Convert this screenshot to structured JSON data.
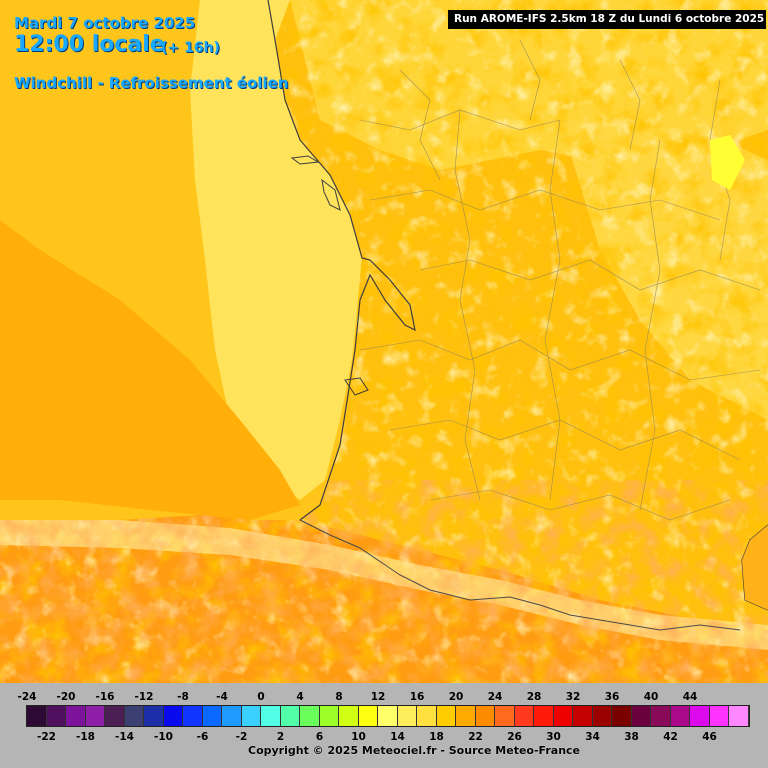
{
  "header": {
    "date": "Mardi 7 octobre 2025",
    "time": "12:00 locale",
    "lead": "(+ 16h)",
    "parameter": "Windchill - Refroissement éolien",
    "run": "Run AROME-IFS 2.5km 18 Z du Lundi 6 octobre 2025"
  },
  "legend": {
    "top_labels": [
      "-24",
      "-20",
      "-16",
      "-12",
      "-8",
      "-4",
      "0",
      "4",
      "8",
      "12",
      "16",
      "20",
      "24",
      "28",
      "32",
      "36",
      "40",
      "44"
    ],
    "bottom_labels": [
      "-22",
      "-18",
      "-14",
      "-10",
      "-6",
      "-2",
      "2",
      "6",
      "10",
      "14",
      "18",
      "22",
      "26",
      "30",
      "34",
      "38",
      "42",
      "46"
    ],
    "colors": [
      "#2c0a34",
      "#4d0f5e",
      "#7d139a",
      "#8f1ea8",
      "#4b1f54",
      "#3b3f72",
      "#1d2fa8",
      "#0a0aee",
      "#0f35ff",
      "#0a6aff",
      "#1f9bff",
      "#3ad0ff",
      "#52ffe6",
      "#52ffa8",
      "#6aff5a",
      "#9dff2a",
      "#d0ff14",
      "#ffff14",
      "#ffff6a",
      "#ffee5c",
      "#ffe03e",
      "#ffcc00",
      "#ffaa00",
      "#ff8c00",
      "#ff6a1f",
      "#ff3a1f",
      "#ff1a0a",
      "#ee0000",
      "#c40000",
      "#9a0000",
      "#7a0000",
      "#6a003e",
      "#8a0a5a",
      "#aa0a8a",
      "#dd0aee",
      "#ff33ff",
      "#ff88ff"
    ]
  },
  "copyright": "Copyright © 2025 Meteociel.fr - Source Meteo-France"
}
